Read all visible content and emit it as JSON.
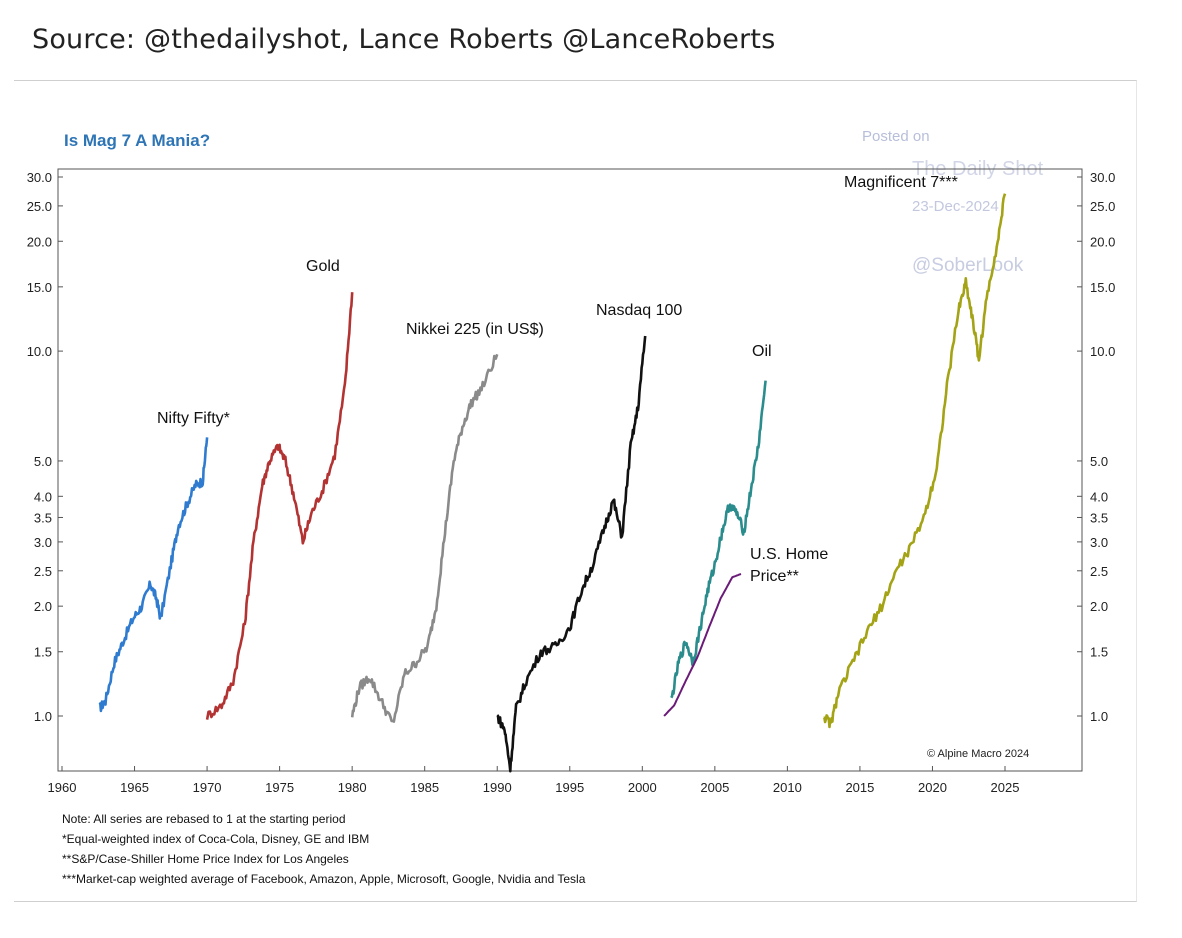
{
  "header": {
    "source_line": "Source: @thedailyshot, Lance Roberts @LanceRoberts"
  },
  "watermark": {
    "line1": "Posted on",
    "line2": "The Daily Shot",
    "line3": "23-Dec-2024",
    "line4": "@SoberLook"
  },
  "copyright": "© Alpine Macro 2024",
  "notes": [
    "Note: All series are rebased to 1 at the starting period",
    "*Equal-weighted index of Coca-Cola, Disney, GE and IBM",
    "**S&P/Case-Shiller Home Price Index for Los Angeles",
    "***Market-cap weighted average of Facebook, Amazon, Apple, Microsoft, Google, Nvidia and Tesla"
  ],
  "chart_data": {
    "type": "line",
    "title": "Is Mag 7 A Mania?",
    "xlabel": "",
    "ylabel": "",
    "y_scale": "log",
    "xlim": [
      1960,
      2030
    ],
    "ylim": [
      0.7,
      31
    ],
    "x_ticks": [
      1960,
      1965,
      1970,
      1975,
      1980,
      1985,
      1990,
      1995,
      2000,
      2005,
      2010,
      2015,
      2020,
      2025
    ],
    "y_ticks": [
      1.0,
      1.5,
      2.0,
      2.5,
      3.0,
      3.5,
      4.0,
      5.0,
      10.0,
      15.0,
      20.0,
      25.0,
      30.0
    ],
    "y_tick_labels": [
      "1.0",
      "1.5",
      "2.0",
      "2.5",
      "3.0",
      "3.5",
      "4.0",
      "5.0",
      "10.0",
      "15.0",
      "20.0",
      "25.0",
      "30.0"
    ],
    "series": [
      {
        "name": "Nifty Fifty*",
        "color": "#2e7bcf",
        "x": [
          1962.6,
          1963.0,
          1963.6,
          1964.2,
          1964.9,
          1965.5,
          1966.1,
          1966.5,
          1966.8,
          1967.5,
          1968.0,
          1968.6,
          1969.2,
          1969.7,
          1970.0
        ],
        "y": [
          1.05,
          1.1,
          1.4,
          1.6,
          1.85,
          2.0,
          2.3,
          2.1,
          1.85,
          2.6,
          3.3,
          3.8,
          4.3,
          4.4,
          5.8
        ]
      },
      {
        "name": "Gold",
        "color": "#b33333",
        "x": [
          1970.0,
          1971.0,
          1971.8,
          1972.6,
          1973.2,
          1973.8,
          1974.3,
          1974.9,
          1975.4,
          1976.0,
          1976.6,
          1977.2,
          1978.0,
          1978.8,
          1979.5,
          1980.0
        ],
        "y": [
          1.0,
          1.07,
          1.25,
          1.8,
          3.0,
          4.3,
          5.0,
          5.5,
          5.0,
          4.0,
          3.0,
          3.6,
          4.2,
          5.2,
          8.0,
          14.5
        ]
      },
      {
        "name": "Nikkei 225 (in US$)",
        "color": "#8a8a8a",
        "x": [
          1980.0,
          1980.5,
          1981.2,
          1982.0,
          1982.8,
          1983.6,
          1984.4,
          1985.2,
          1985.8,
          1986.4,
          1987.0,
          1987.6,
          1988.2,
          1989.0,
          1990.0
        ],
        "y": [
          1.0,
          1.2,
          1.28,
          1.1,
          0.95,
          1.3,
          1.4,
          1.55,
          2.0,
          3.2,
          5.0,
          6.2,
          7.2,
          8.0,
          9.8
        ]
      },
      {
        "name": "Nasdaq 100",
        "color": "#111111",
        "x": [
          1990.0,
          1990.5,
          1990.9,
          1991.3,
          1992.0,
          1993.0,
          1994.0,
          1995.0,
          1995.8,
          1996.6,
          1997.4,
          1998.0,
          1998.6,
          1999.2,
          1999.7,
          2000.2
        ],
        "y": [
          1.0,
          0.92,
          0.72,
          1.05,
          1.25,
          1.5,
          1.55,
          1.75,
          2.2,
          2.6,
          3.3,
          3.9,
          3.1,
          5.5,
          7.0,
          11.0
        ]
      },
      {
        "name": "Oil",
        "color": "#2a8c8c",
        "x": [
          2002.0,
          2002.5,
          2003.0,
          2003.5,
          2004.0,
          2004.5,
          2005.0,
          2005.5,
          2006.0,
          2006.5,
          2007.0,
          2007.5,
          2008.0,
          2008.5
        ],
        "y": [
          1.1,
          1.4,
          1.6,
          1.4,
          1.75,
          2.2,
          2.6,
          3.2,
          3.8,
          3.6,
          3.2,
          4.2,
          5.5,
          8.3
        ]
      },
      {
        "name": "U.S. Home Price**",
        "color": "#6a1b78",
        "x": [
          2001.5,
          2002.2,
          2003.0,
          2003.8,
          2004.6,
          2005.4,
          2006.2,
          2006.8
        ],
        "y": [
          1.0,
          1.07,
          1.25,
          1.45,
          1.75,
          2.1,
          2.4,
          2.45
        ]
      },
      {
        "name": "Magnificent 7***",
        "color": "#a3a315",
        "x": [
          2012.5,
          2013.0,
          2013.5,
          2014.5,
          2015.5,
          2016.5,
          2017.5,
          2018.5,
          2019.5,
          2020.3,
          2021.0,
          2021.8,
          2022.3,
          2022.8,
          2023.2,
          2023.8,
          2024.5,
          2025.0
        ],
        "y": [
          1.0,
          0.95,
          1.15,
          1.4,
          1.7,
          2.0,
          2.5,
          2.9,
          3.6,
          4.8,
          8.0,
          13.0,
          15.5,
          12.0,
          9.5,
          14.5,
          20.0,
          27.0
        ]
      }
    ]
  }
}
